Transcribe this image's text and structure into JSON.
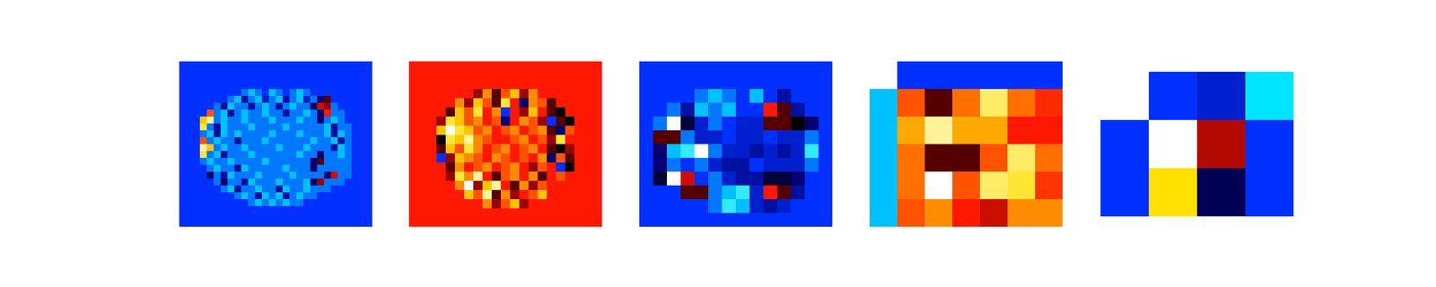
{
  "chart_data": [
    {
      "type": "heatmap",
      "color_range": [
        -10,
        10
      ],
      "cells": [
        [
          -5,
          -5,
          -5,
          -5,
          -5,
          -5,
          -5,
          -5,
          -5,
          -5,
          -5,
          -5,
          -5,
          -5,
          -5,
          -5,
          -5,
          -5,
          -5,
          -5,
          -5,
          -5,
          -5,
          -5,
          -5,
          -5,
          -5,
          -5
        ],
        [
          -5,
          -5,
          -5,
          -5,
          -5,
          -5,
          -5,
          -5,
          -5,
          -5,
          -5,
          -5,
          -5,
          -5,
          -5,
          -5,
          -5,
          -5,
          -5,
          -5,
          -5,
          -5,
          -5,
          -5,
          -5,
          -5,
          -5,
          -5
        ],
        [
          -5,
          -5,
          -5,
          -5,
          -5,
          -5,
          -5,
          -5,
          -5,
          -5,
          -5,
          -5,
          -5,
          -5,
          -5,
          -5,
          -5,
          -5,
          -5,
          -5,
          -5,
          -5,
          -5,
          -5,
          -5,
          -5,
          -5,
          -5
        ],
        [
          -5,
          -5,
          -5,
          -5,
          -5,
          -5,
          -5,
          -5,
          -5,
          -5,
          -5,
          -5,
          -5,
          -5,
          -5,
          -5,
          -5,
          -5,
          -5,
          -5,
          -5,
          -5,
          -5,
          -5,
          -5,
          -5,
          -5,
          -5
        ],
        [
          -5,
          -5,
          -5,
          -5,
          -5,
          -5,
          -5,
          -5,
          -5,
          -6,
          -7,
          -6,
          -5,
          -7,
          -6,
          -5,
          -6,
          -7,
          -6,
          -5,
          -5,
          -5,
          -5,
          -5,
          -5,
          -5,
          -5,
          -5
        ],
        [
          -5,
          -5,
          -5,
          -5,
          -5,
          -5,
          -5,
          -6,
          -7,
          -3,
          -6,
          -7,
          -4,
          -6,
          -7,
          -3,
          -6,
          -7,
          -4,
          -6,
          -2,
          1,
          -5,
          -5,
          -5,
          -5,
          -5,
          -5
        ],
        [
          -5,
          -5,
          -5,
          -5,
          -5,
          -6,
          -3,
          -7,
          -6,
          -6,
          -3,
          -6,
          -7,
          -6,
          -3,
          -6,
          -7,
          -6,
          -6,
          -2,
          3,
          2,
          -6,
          -5,
          -5,
          -5,
          -5,
          -5
        ],
        [
          -5,
          -5,
          -5,
          -5,
          5,
          -6,
          -7,
          -3,
          -6,
          -7,
          -6,
          -6,
          -7,
          -6,
          -6,
          -3,
          -6,
          -6,
          -7,
          -6,
          -2,
          4,
          -6,
          -6,
          -5,
          -5,
          -5,
          -5
        ],
        [
          -5,
          -5,
          -5,
          7,
          9,
          -6,
          -7,
          -6,
          -6,
          -7,
          -6,
          -6,
          -6,
          -7,
          -6,
          -6,
          -6,
          -7,
          -6,
          -6,
          -2,
          -6,
          -7,
          -6,
          -5,
          -5,
          -5,
          -5
        ],
        [
          -5,
          -5,
          -5,
          8,
          -6,
          -3,
          -7,
          -6,
          -6,
          -6,
          -7,
          -6,
          -6,
          -6,
          -6,
          -7,
          -6,
          -6,
          -6,
          -6,
          -6,
          -7,
          -3,
          -6,
          -6,
          -5,
          -5,
          -5
        ],
        [
          -5,
          -5,
          -5,
          -6,
          -7,
          -3,
          -7,
          -6,
          -7,
          -6,
          -6,
          -6,
          -6,
          -7,
          -6,
          -6,
          -6,
          -7,
          -6,
          -6,
          -6,
          -7,
          -3,
          -7,
          -6,
          -5,
          -5,
          -5
        ],
        [
          -5,
          -5,
          -5,
          5,
          -6,
          -7,
          -6,
          -6,
          -3,
          -6,
          -6,
          -6,
          -7,
          -6,
          -6,
          -6,
          -6,
          -6,
          -6,
          -7,
          -6,
          -6,
          -7,
          -3,
          -6,
          -5,
          -5,
          -5
        ],
        [
          -5,
          -5,
          -5,
          9,
          7,
          -6,
          -7,
          -6,
          -6,
          -7,
          -6,
          -6,
          -6,
          -6,
          -7,
          -6,
          -6,
          -6,
          -7,
          -6,
          -6,
          -6,
          -3,
          -7,
          -6,
          -5,
          -5,
          -5
        ],
        [
          -5,
          -5,
          -5,
          8,
          -6,
          -7,
          -3,
          -6,
          -6,
          -6,
          -7,
          -6,
          -6,
          -6,
          -6,
          -6,
          -6,
          -7,
          -6,
          -6,
          -2,
          -6,
          -6,
          -7,
          -6,
          -5,
          -5,
          -5
        ],
        [
          -5,
          -5,
          -5,
          -6,
          -7,
          -6,
          -6,
          -7,
          -6,
          -6,
          -6,
          -6,
          -7,
          -6,
          -6,
          -6,
          -6,
          -6,
          -6,
          -2,
          1,
          -6,
          -6,
          -6,
          -6,
          -5,
          -5,
          -5
        ],
        [
          -5,
          -5,
          -5,
          -5,
          -6,
          -7,
          -6,
          -6,
          -3,
          -7,
          -6,
          -6,
          -6,
          -6,
          -6,
          -7,
          -6,
          -6,
          -6,
          -2,
          -6,
          -6,
          -6,
          -6,
          -6,
          -5,
          -5,
          -5
        ],
        [
          -5,
          -5,
          -5,
          -5,
          -2,
          -6,
          -3,
          -7,
          -6,
          -6,
          -6,
          -7,
          -6,
          -6,
          -6,
          -6,
          -7,
          -6,
          -6,
          -6,
          -6,
          -2,
          3,
          -6,
          -6,
          -5,
          -5,
          -5
        ],
        [
          -5,
          -5,
          -5,
          -5,
          -5,
          -6,
          -2,
          -6,
          -6,
          -3,
          -7,
          -6,
          -6,
          -6,
          -7,
          -6,
          -6,
          -6,
          -7,
          -2,
          2,
          -6,
          -6,
          -6,
          -5,
          -5,
          -5,
          -5
        ],
        [
          -5,
          -5,
          -5,
          -5,
          -5,
          -5,
          -6,
          -7,
          -3,
          -6,
          -6,
          -7,
          -6,
          -6,
          -3,
          -7,
          -6,
          -6,
          -7,
          -6,
          -6,
          -6,
          -5,
          -5,
          -5,
          -5,
          -5,
          -5
        ],
        [
          -5,
          -5,
          -5,
          -5,
          -5,
          -5,
          -5,
          -5,
          -6,
          -7,
          -6,
          -3,
          -7,
          -6,
          -7,
          -3,
          -6,
          -7,
          -6,
          -6,
          -5,
          -5,
          -5,
          -5,
          -5,
          -5,
          -5,
          -5
        ],
        [
          -5,
          -5,
          -5,
          -5,
          -5,
          -5,
          -5,
          -5,
          -5,
          -5,
          -6,
          -7,
          -6,
          -7,
          -6,
          -7,
          -6,
          -6,
          -5,
          -5,
          -5,
          -5,
          -5,
          -5,
          -5,
          -5,
          -5,
          -5
        ],
        [
          -5,
          -5,
          -5,
          -5,
          -5,
          -5,
          -5,
          -5,
          -5,
          -5,
          -5,
          -5,
          -5,
          -5,
          -5,
          -5,
          -5,
          -5,
          -5,
          -5,
          -5,
          -5,
          -5,
          -5,
          -5,
          -5,
          -5,
          -5
        ],
        [
          -5,
          -5,
          -5,
          -5,
          -5,
          -5,
          -5,
          -5,
          -5,
          -5,
          -5,
          -5,
          -5,
          -5,
          -5,
          -5,
          -5,
          -5,
          -5,
          -5,
          -5,
          -5,
          -5,
          -5,
          -5,
          -5,
          -5,
          -5
        ],
        [
          -5,
          -5,
          -5,
          -5,
          -5,
          -5,
          -5,
          -5,
          -5,
          -5,
          -5,
          -5,
          -5,
          -5,
          -5,
          -5,
          -5,
          -5,
          -5,
          -5,
          -5,
          -5,
          -5,
          -5,
          -5,
          -5,
          -5,
          -5
        ]
      ]
    },
    {
      "type": "heatmap",
      "color_range": [
        -10,
        10
      ],
      "cells": [
        [
          4,
          4,
          4,
          4,
          4,
          4,
          4,
          4,
          4,
          4,
          4,
          4,
          4,
          4,
          4,
          4,
          4,
          4,
          4,
          4,
          4
        ],
        [
          4,
          4,
          4,
          4,
          4,
          4,
          4,
          4,
          4,
          4,
          4,
          4,
          4,
          4,
          4,
          4,
          4,
          4,
          4,
          4,
          4
        ],
        [
          4,
          4,
          4,
          4,
          4,
          4,
          4,
          4,
          4,
          4,
          4,
          4,
          4,
          4,
          4,
          4,
          4,
          4,
          4,
          4,
          4
        ],
        [
          4,
          4,
          4,
          4,
          4,
          4,
          4,
          2,
          6,
          1,
          5,
          7,
          2,
          6,
          4,
          4,
          4,
          4,
          4,
          4,
          4
        ],
        [
          4,
          4,
          4,
          4,
          4,
          6,
          2,
          7,
          5,
          1,
          8,
          4,
          -2,
          6,
          5,
          1,
          4,
          4,
          4,
          4,
          4
        ],
        [
          4,
          4,
          4,
          4,
          1,
          7,
          5,
          8,
          4,
          6,
          -5,
          4,
          2,
          7,
          4,
          1,
          0,
          4,
          4,
          4,
          4
        ],
        [
          4,
          4,
          4,
          2,
          8,
          7,
          5,
          6,
          4,
          5,
          -2,
          4,
          6,
          5,
          2,
          -5,
          1,
          0,
          4,
          4,
          4
        ],
        [
          4,
          4,
          4,
          7,
          10,
          8,
          7,
          5,
          6,
          4,
          5,
          6,
          4,
          5,
          6,
          1,
          -2,
          5,
          4,
          4,
          4
        ],
        [
          4,
          4,
          4,
          0,
          8,
          7,
          9,
          6,
          5,
          4,
          4,
          5,
          6,
          4,
          5,
          2,
          8,
          4,
          4,
          4,
          4
        ],
        [
          4,
          4,
          4,
          1,
          7,
          5,
          8,
          6,
          4,
          5,
          6,
          4,
          5,
          6,
          4,
          1,
          0,
          2,
          4,
          4,
          4
        ],
        [
          4,
          4,
          4,
          -5,
          2,
          7,
          6,
          5,
          4,
          6,
          5,
          4,
          5,
          4,
          6,
          -2,
          5,
          1,
          4,
          4,
          4
        ],
        [
          4,
          4,
          4,
          4,
          1,
          6,
          4,
          5,
          6,
          4,
          5,
          6,
          4,
          2,
          5,
          4,
          -5,
          0,
          4,
          4,
          4
        ],
        [
          4,
          4,
          4,
          4,
          2,
          8,
          6,
          9,
          4,
          1,
          5,
          6,
          4,
          6,
          1,
          4,
          5,
          4,
          4,
          4,
          4
        ],
        [
          4,
          4,
          4,
          4,
          4,
          6,
          10,
          2,
          7,
          9,
          4,
          1,
          6,
          2,
          5,
          4,
          4,
          4,
          4,
          4,
          4
        ],
        [
          4,
          4,
          4,
          4,
          4,
          4,
          7,
          5,
          9,
          1,
          6,
          2,
          4,
          5,
          7,
          4,
          4,
          4,
          4,
          4,
          4
        ],
        [
          4,
          4,
          4,
          4,
          4,
          4,
          4,
          4,
          6,
          2,
          5,
          7,
          2,
          4,
          4,
          4,
          4,
          4,
          4,
          4,
          4
        ],
        [
          4,
          4,
          4,
          4,
          4,
          4,
          4,
          4,
          4,
          4,
          4,
          4,
          4,
          4,
          4,
          4,
          4,
          4,
          4,
          4,
          4
        ],
        [
          4,
          4,
          4,
          4,
          4,
          4,
          4,
          4,
          4,
          4,
          4,
          4,
          4,
          4,
          4,
          4,
          4,
          4,
          4,
          4,
          4
        ]
      ]
    },
    {
      "type": "heatmap",
      "color_range": [
        -10,
        10
      ],
      "cells": [
        [
          -5,
          -5,
          -5,
          -5,
          -5,
          -5,
          -5,
          -5,
          -5,
          -5,
          -5,
          -5,
          -5,
          -5
        ],
        [
          -5,
          -5,
          -5,
          -5,
          -5,
          -5,
          -5,
          -5,
          -5,
          -5,
          -5,
          -5,
          -5,
          -5
        ],
        [
          -5,
          -5,
          -5,
          -5,
          -6,
          -7,
          -6,
          -5,
          -7,
          -5,
          -3,
          -5,
          -5,
          -5
        ],
        [
          -5,
          -5,
          -6,
          -3,
          -7,
          -6,
          -7,
          -5,
          -5,
          4,
          1,
          -3,
          -5,
          -5
        ],
        [
          -5,
          -6,
          10,
          -1,
          -4,
          -6,
          -5,
          -4,
          -4,
          1,
          1,
          0,
          -2,
          -5
        ],
        [
          -5,
          1,
          1,
          -6,
          -4,
          -4,
          -5,
          -4,
          -4,
          -5,
          -4,
          -4,
          -6,
          -5
        ],
        [
          -5,
          -2,
          -7,
          -8,
          10,
          -6,
          -4,
          -4,
          -3,
          -4,
          -3,
          -4,
          -8,
          -5
        ],
        [
          -5,
          -2,
          -6,
          -5,
          -6,
          -4,
          -3,
          -3,
          -5,
          -4,
          -4,
          -4,
          -6,
          -5
        ],
        [
          -5,
          -1,
          10,
          3,
          -5,
          -6,
          -4,
          -3,
          -3,
          -1,
          -1,
          -2,
          -5,
          -5
        ],
        [
          -5,
          -5,
          -5,
          1,
          1,
          -6,
          -7,
          -8,
          -4,
          4,
          1,
          -3,
          -5,
          -5
        ],
        [
          -5,
          -5,
          -5,
          -5,
          -5,
          -6,
          -8,
          -7,
          -4,
          -3,
          -4,
          -5,
          -5,
          -5
        ],
        [
          -5,
          -5,
          -5,
          -5,
          -5,
          -5,
          -5,
          -5,
          -5,
          -5,
          -5,
          -5,
          -5,
          -5
        ]
      ]
    },
    {
      "type": "heatmap",
      "color_range": [
        -10,
        10
      ],
      "cells": [
        [
          null,
          -5,
          -5,
          -5,
          -5,
          -5,
          -5
        ],
        [
          -7,
          5,
          1,
          5.5,
          8.5,
          5.5,
          4.3
        ],
        [
          -7,
          6.5,
          9,
          6.5,
          6.5,
          4,
          4
        ],
        [
          -7,
          5.5,
          1,
          1,
          5,
          8.5,
          5.5
        ],
        [
          -7,
          5.5,
          10,
          5,
          8.5,
          8,
          4.5
        ],
        [
          -7,
          5,
          6,
          4,
          3,
          6,
          6
        ]
      ]
    },
    {
      "type": "heatmap",
      "color_range": [
        -10,
        10
      ],
      "cells": [
        [
          null,
          -5,
          -4,
          -7.5
        ],
        [
          -5,
          10,
          2.5,
          -5
        ],
        [
          -5,
          7.5,
          -1.5,
          -5
        ]
      ]
    }
  ]
}
